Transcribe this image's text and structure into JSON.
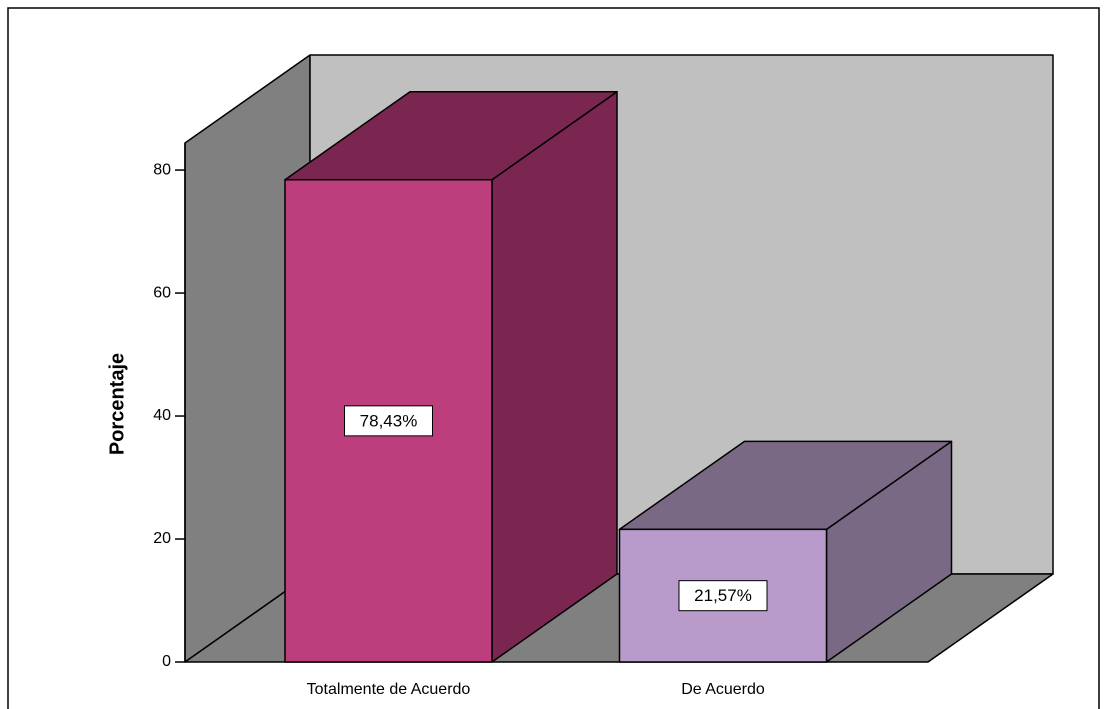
{
  "chart_data": {
    "type": "bar",
    "y_label": "Porcentaje",
    "categories": [
      "Totalmente de Acuerdo",
      "De Acuerdo"
    ],
    "values": [
      78.43,
      21.57
    ],
    "value_labels": [
      "78,43%",
      "21,57%"
    ],
    "colors": [
      "#bc3e7c",
      "#b89acb"
    ],
    "side_colors": [
      "#7a2650",
      "#7a6985"
    ],
    "ylim": [
      0,
      84.4
    ],
    "yticks": [
      0,
      20,
      40,
      60,
      80
    ],
    "grid": false
  }
}
